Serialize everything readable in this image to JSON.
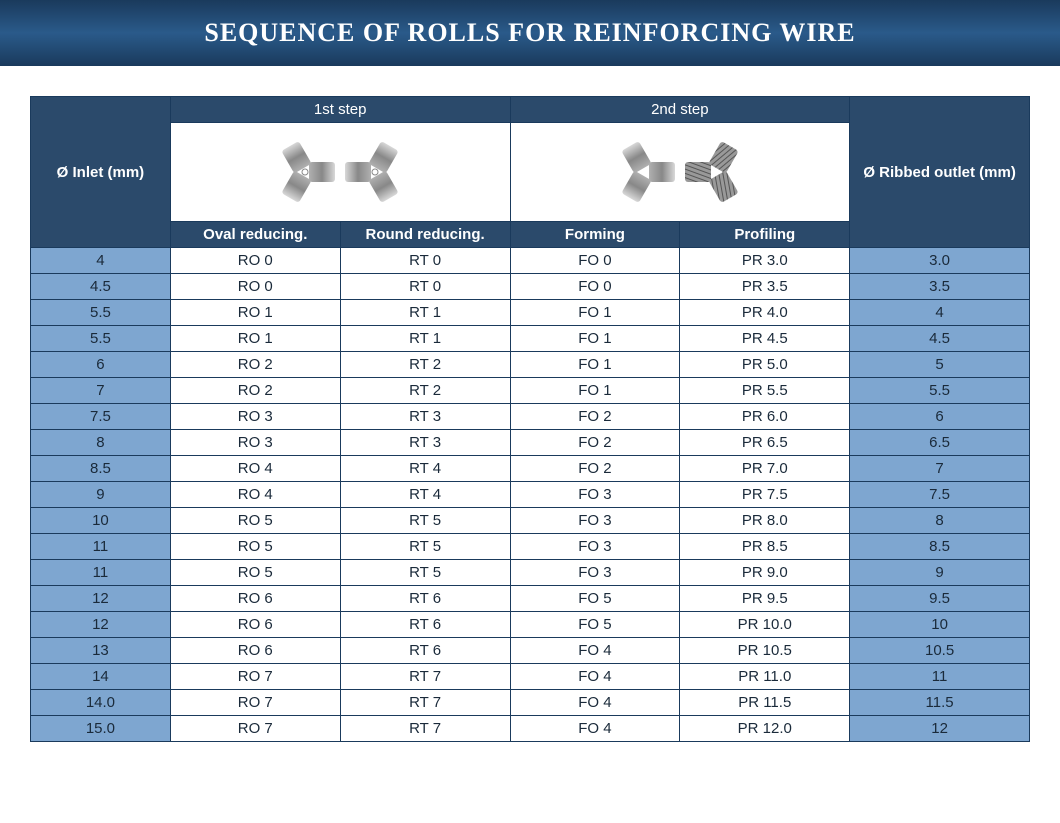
{
  "title": "SEQUENCE OF ROLLS FOR REINFORCING WIRE",
  "headers": {
    "inlet": "Ø Inlet (mm)",
    "step1": "1st step",
    "step2": "2nd step",
    "outlet": "Ø Ribbed outlet (mm)",
    "oval": "Oval reducing.",
    "round": "Round reducing.",
    "forming": "Forming",
    "profiling": "Profiling"
  },
  "colors": {
    "header_bg": "#2b4a6b",
    "row_blue": "#7ea6d0",
    "row_white": "#ffffff",
    "border": "#1a3a5c",
    "text": "#1a2a3a"
  },
  "col_widths_pct": [
    14,
    17,
    17,
    17,
    17,
    18
  ],
  "rows": [
    {
      "inlet": "4",
      "oval": "RO 0",
      "round": "RT 0",
      "forming": "FO 0",
      "profiling": "PR 3.0",
      "outlet": "3.0"
    },
    {
      "inlet": "4.5",
      "oval": "RO 0",
      "round": "RT 0",
      "forming": "FO 0",
      "profiling": "PR 3.5",
      "outlet": "3.5"
    },
    {
      "inlet": "5.5",
      "oval": "RO 1",
      "round": "RT 1",
      "forming": "FO 1",
      "profiling": "PR 4.0",
      "outlet": "4"
    },
    {
      "inlet": "5.5",
      "oval": "RO 1",
      "round": "RT 1",
      "forming": "FO 1",
      "profiling": "PR 4.5",
      "outlet": "4.5"
    },
    {
      "inlet": "6",
      "oval": "RO 2",
      "round": "RT 2",
      "forming": "FO 1",
      "profiling": "PR 5.0",
      "outlet": "5"
    },
    {
      "inlet": "7",
      "oval": "RO 2",
      "round": "RT 2",
      "forming": "FO 1",
      "profiling": "PR 5.5",
      "outlet": "5.5"
    },
    {
      "inlet": "7.5",
      "oval": "RO 3",
      "round": "RT 3",
      "forming": "FO 2",
      "profiling": "PR 6.0",
      "outlet": "6"
    },
    {
      "inlet": "8",
      "oval": "RO 3",
      "round": "RT 3",
      "forming": "FO 2",
      "profiling": "PR 6.5",
      "outlet": "6.5"
    },
    {
      "inlet": "8.5",
      "oval": "RO 4",
      "round": "RT 4",
      "forming": "FO 2",
      "profiling": "PR 7.0",
      "outlet": "7"
    },
    {
      "inlet": "9",
      "oval": "RO 4",
      "round": "RT 4",
      "forming": "FO 3",
      "profiling": "PR 7.5",
      "outlet": "7.5"
    },
    {
      "inlet": "10",
      "oval": "RO 5",
      "round": "RT 5",
      "forming": "FO 3",
      "profiling": "PR 8.0",
      "outlet": "8"
    },
    {
      "inlet": "11",
      "oval": "RO 5",
      "round": "RT 5",
      "forming": "FO 3",
      "profiling": "PR 8.5",
      "outlet": "8.5"
    },
    {
      "inlet": "11",
      "oval": "RO 5",
      "round": "RT 5",
      "forming": "FO 3",
      "profiling": "PR 9.0",
      "outlet": "9"
    },
    {
      "inlet": "12",
      "oval": "RO 6",
      "round": "RT 6",
      "forming": "FO 5",
      "profiling": "PR 9.5",
      "outlet": "9.5"
    },
    {
      "inlet": "12",
      "oval": "RO 6",
      "round": "RT 6",
      "forming": "FO 5",
      "profiling": "PR 10.0",
      "outlet": "10"
    },
    {
      "inlet": "13",
      "oval": "RO 6",
      "round": "RT 6",
      "forming": "FO 4",
      "profiling": "PR 10.5",
      "outlet": "10.5"
    },
    {
      "inlet": "14",
      "oval": "RO 7",
      "round": "RT 7",
      "forming": "FO 4",
      "profiling": "PR 11.0",
      "outlet": "11"
    },
    {
      "inlet": "14.0",
      "oval": "RO 7",
      "round": "RT 7",
      "forming": "FO 4",
      "profiling": "PR 11.5",
      "outlet": "11.5"
    },
    {
      "inlet": "15.0",
      "oval": "RO 7",
      "round": "RT 7",
      "forming": "FO 4",
      "profiling": "PR 12.0",
      "outlet": "12"
    }
  ]
}
